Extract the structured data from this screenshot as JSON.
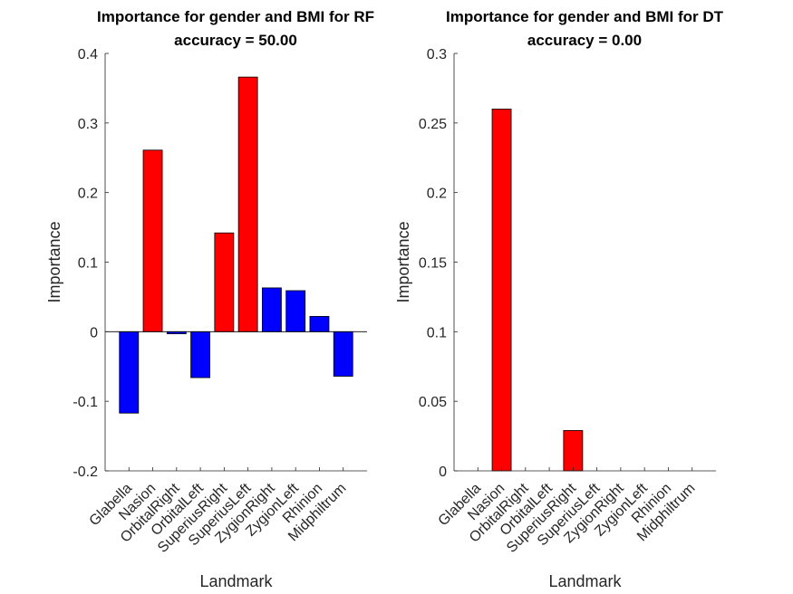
{
  "chart_data": [
    {
      "type": "bar",
      "title": "Importance for gender and BMI for RF",
      "subtitle": "accuracy = 50.00",
      "xlabel": "Landmark",
      "ylabel": "Importance",
      "ylim": [
        -0.2,
        0.4
      ],
      "yticks": [
        "-0.2",
        "-0.1",
        "0",
        "0.1",
        "0.2",
        "0.3",
        "0.4"
      ],
      "categories": [
        "Glabella",
        "Nasion",
        "OrbitalRight",
        "OrbitalLeft",
        "SuperiusRight",
        "SuperiusLeft",
        "ZygionRight",
        "ZygionLeft",
        "Rhinion",
        "Midphiltrum"
      ],
      "values": [
        -0.117,
        0.261,
        -0.003,
        -0.066,
        0.142,
        0.366,
        0.063,
        0.059,
        0.022,
        -0.064
      ],
      "bar_colors": [
        "#0000ff",
        "#ff0000",
        "#0000ff",
        "#0000ff",
        "#ff0000",
        "#ff0000",
        "#0000ff",
        "#0000ff",
        "#0000ff",
        "#0000ff"
      ],
      "grid": false,
      "legend": "none"
    },
    {
      "type": "bar",
      "title": "Importance for gender and BMI for DT",
      "subtitle": "accuracy = 0.00",
      "xlabel": "Landmark",
      "ylabel": "Importance",
      "ylim": [
        0,
        0.3
      ],
      "yticks": [
        "0",
        "0.05",
        "0.1",
        "0.15",
        "0.2",
        "0.25",
        "0.3"
      ],
      "categories": [
        "Glabella",
        "Nasion",
        "OrbitalRight",
        "OrbitalLeft",
        "SuperiusRight",
        "SuperiusLeft",
        "ZygionRight",
        "ZygionLeft",
        "Rhinion",
        "Midphiltrum"
      ],
      "values": [
        0,
        0.26,
        0,
        0,
        0.029,
        0,
        0,
        0,
        0,
        0
      ],
      "bar_colors": [
        "#ff0000",
        "#ff0000",
        "#ff0000",
        "#ff0000",
        "#ff0000",
        "#ff0000",
        "#ff0000",
        "#ff0000",
        "#ff0000",
        "#ff0000"
      ],
      "grid": false,
      "legend": "none"
    }
  ]
}
